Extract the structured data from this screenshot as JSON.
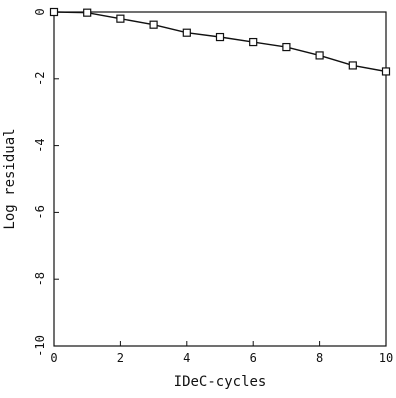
{
  "chart_data": {
    "type": "line",
    "title": "",
    "xlabel": "IDeC-cycles",
    "ylabel": "Log residual",
    "xlim": [
      0,
      10
    ],
    "ylim": [
      -10,
      0
    ],
    "x_ticks": [
      "0",
      "2",
      "4",
      "6",
      "8",
      "10"
    ],
    "y_ticks": [
      "0",
      "-2",
      "-4",
      "-6",
      "-8",
      "-10"
    ],
    "grid": false,
    "marker": "square",
    "series": [
      {
        "x": [
          0,
          1,
          2,
          3,
          4,
          5,
          6,
          7,
          8,
          9,
          10
        ],
        "values": [
          0,
          -0.02,
          -0.2,
          -0.38,
          -0.62,
          -0.75,
          -0.9,
          -1.05,
          -1.3,
          -1.6,
          -1.78
        ]
      }
    ]
  }
}
